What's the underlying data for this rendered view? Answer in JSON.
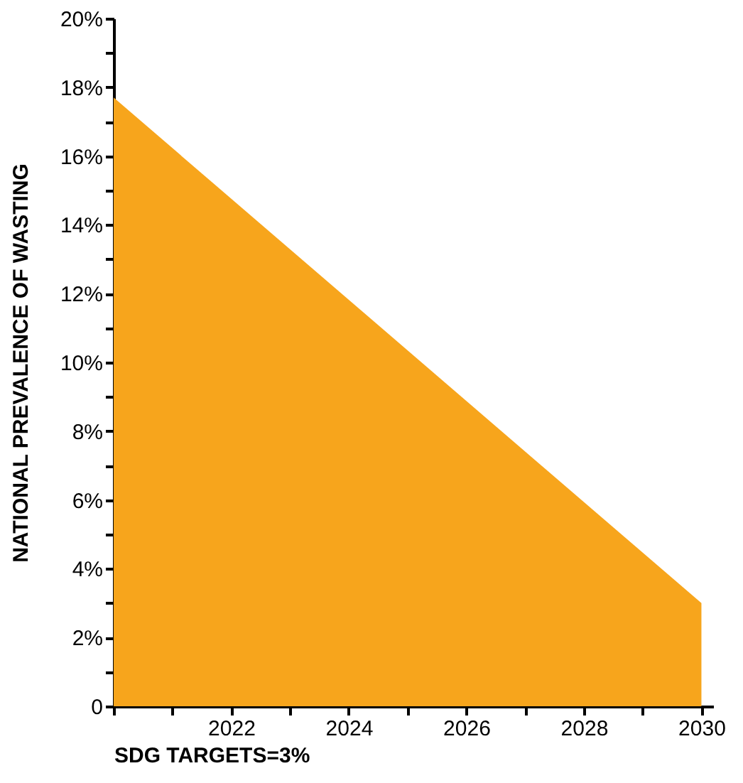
{
  "chart_data": {
    "type": "area",
    "xlabel": "SDG TARGETS=3%",
    "ylabel": "NATIONAL PREVALENCE OF WASTING",
    "x": [
      2020,
      2030
    ],
    "series": [
      {
        "color": "#f7a51c",
        "values": [
          17.7,
          3.0
        ]
      }
    ],
    "xlim": [
      2020,
      2030.2
    ],
    "xticks": [
      {
        "value": 2020,
        "label": null
      },
      {
        "value": 2021,
        "label": null
      },
      2022,
      {
        "value": 2023,
        "label": null
      },
      2024,
      {
        "value": 2025,
        "label": null
      },
      2026,
      {
        "value": 2027,
        "label": null
      },
      2028,
      {
        "value": 2029,
        "label": null
      },
      2030
    ],
    "ylim": [
      0,
      20
    ],
    "yticks": [
      {
        "value": 0,
        "label": "0"
      },
      {
        "value": 1,
        "label": null
      },
      {
        "value": 2,
        "label": "2%"
      },
      {
        "value": 3,
        "label": null
      },
      {
        "value": 4,
        "label": "4%"
      },
      {
        "value": 5,
        "label": null
      },
      {
        "value": 6,
        "label": "6%"
      },
      {
        "value": 7,
        "label": null
      },
      {
        "value": 8,
        "label": "8%"
      },
      {
        "value": 9,
        "label": null
      },
      {
        "value": 10,
        "label": "10%"
      },
      {
        "value": 11,
        "label": null
      },
      {
        "value": 12,
        "label": "12%"
      },
      {
        "value": 13,
        "label": null
      },
      {
        "value": 14,
        "label": "14%"
      },
      {
        "value": 15,
        "label": null
      },
      {
        "value": 16,
        "label": "16%"
      },
      {
        "value": 17,
        "label": null
      },
      {
        "value": 18,
        "label": "18%"
      },
      {
        "value": 19,
        "label": null
      },
      {
        "value": 20,
        "label": "20%"
      }
    ],
    "grid": false,
    "legend": false
  }
}
